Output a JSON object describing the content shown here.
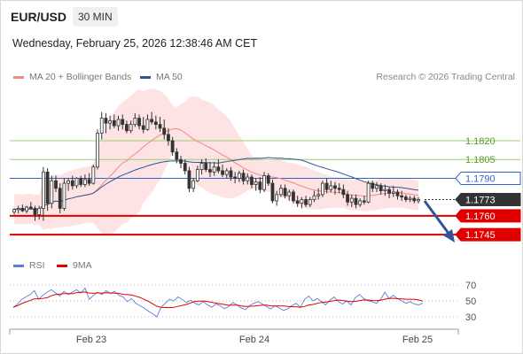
{
  "header": {
    "pair": "EUR/USD",
    "timeframe": "30 MIN",
    "datetime": "Wednesday, February 25, 2026 12:38:46 AM CET"
  },
  "legend": {
    "ma20": "MA 20 + Bollinger Bands",
    "ma50": "MA 50",
    "copyright": "Research © 2026 Trading Central"
  },
  "rsi_legend": {
    "rsi": "RSI",
    "ma9": "9MA"
  },
  "colors": {
    "ma20": "#f08a84",
    "ma50": "#2f5597",
    "bands": "#fde3e3",
    "resistance": "#9ccf6f",
    "pivot": "#2f67c8",
    "support": "#e00000",
    "current": "#333333",
    "up_candle": "#333333",
    "down_candle": "#333333",
    "rsi": "#5b7fd6",
    "rsi_ma": "#e00000",
    "arrow": "#2f5597"
  },
  "levels": [
    {
      "value": "1.1820",
      "type": "resistance"
    },
    {
      "value": "1.1805",
      "type": "resistance"
    },
    {
      "value": "1.1790",
      "type": "pivot"
    },
    {
      "value": "1.1773",
      "type": "current"
    },
    {
      "value": "1.1760",
      "type": "support"
    },
    {
      "value": "1.1745",
      "type": "support"
    }
  ],
  "rsi_axis": [
    "70",
    "50",
    "30"
  ],
  "x_axis": [
    "Feb 23",
    "Feb 24",
    "Feb 25"
  ],
  "chart_data": {
    "type": "candlestick",
    "price_range": [
      1.1738,
      1.1861
    ],
    "candles": [
      [
        1.1763,
        1.1766,
        1.1761,
        1.1765
      ],
      [
        1.1765,
        1.1768,
        1.1762,
        1.1766
      ],
      [
        1.1766,
        1.1769,
        1.1763,
        1.1764
      ],
      [
        1.1764,
        1.1768,
        1.1762,
        1.1767
      ],
      [
        1.1767,
        1.1771,
        1.1765,
        1.1766
      ],
      [
        1.1766,
        1.1768,
        1.1756,
        1.1761
      ],
      [
        1.1761,
        1.1768,
        1.1757,
        1.1766
      ],
      [
        1.1766,
        1.1799,
        1.1756,
        1.1795
      ],
      [
        1.1795,
        1.1798,
        1.1764,
        1.177
      ],
      [
        1.177,
        1.1792,
        1.1766,
        1.1788
      ],
      [
        1.1788,
        1.1792,
        1.1779,
        1.1782
      ],
      [
        1.1782,
        1.1786,
        1.1762,
        1.1766
      ],
      [
        1.1766,
        1.179,
        1.1764,
        1.1786
      ],
      [
        1.1786,
        1.179,
        1.178,
        1.1788
      ],
      [
        1.1788,
        1.1792,
        1.1781,
        1.1784
      ],
      [
        1.1784,
        1.1791,
        1.1782,
        1.179
      ],
      [
        1.179,
        1.1792,
        1.1783,
        1.1785
      ],
      [
        1.1785,
        1.1793,
        1.1783,
        1.1789
      ],
      [
        1.1789,
        1.1794,
        1.1784,
        1.1786
      ],
      [
        1.1786,
        1.1801,
        1.1785,
        1.1799
      ],
      [
        1.1799,
        1.1829,
        1.1797,
        1.1826
      ],
      [
        1.1826,
        1.1843,
        1.1821,
        1.1838
      ],
      [
        1.1838,
        1.1842,
        1.1826,
        1.1834
      ],
      [
        1.1834,
        1.184,
        1.1829,
        1.1836
      ],
      [
        1.1836,
        1.1841,
        1.183,
        1.1832
      ],
      [
        1.1832,
        1.184,
        1.1828,
        1.1837
      ],
      [
        1.1837,
        1.1841,
        1.1829,
        1.1833
      ],
      [
        1.1833,
        1.1836,
        1.1826,
        1.1828
      ],
      [
        1.1828,
        1.1836,
        1.1826,
        1.1833
      ],
      [
        1.1833,
        1.1842,
        1.1831,
        1.1838
      ],
      [
        1.1838,
        1.1841,
        1.1829,
        1.1832
      ],
      [
        1.1832,
        1.1839,
        1.1826,
        1.1829
      ],
      [
        1.1829,
        1.1841,
        1.1828,
        1.1837
      ],
      [
        1.1837,
        1.1843,
        1.1833,
        1.1835
      ],
      [
        1.1835,
        1.184,
        1.1829,
        1.1833
      ],
      [
        1.1833,
        1.1839,
        1.1827,
        1.183
      ],
      [
        1.183,
        1.1837,
        1.1821,
        1.1825
      ],
      [
        1.1825,
        1.183,
        1.1816,
        1.182
      ],
      [
        1.182,
        1.1823,
        1.1808,
        1.1811
      ],
      [
        1.1811,
        1.1814,
        1.1802,
        1.1805
      ],
      [
        1.1805,
        1.1808,
        1.1798,
        1.1802
      ],
      [
        1.1802,
        1.1805,
        1.1793,
        1.1796
      ],
      [
        1.1796,
        1.1799,
        1.1779,
        1.1782
      ],
      [
        1.1782,
        1.179,
        1.1779,
        1.1788
      ],
      [
        1.1788,
        1.18,
        1.1787,
        1.1797
      ],
      [
        1.1797,
        1.1805,
        1.1793,
        1.1802
      ],
      [
        1.1802,
        1.1806,
        1.1795,
        1.1797
      ],
      [
        1.1797,
        1.1803,
        1.1791,
        1.1795
      ],
      [
        1.1795,
        1.1803,
        1.1792,
        1.1799
      ],
      [
        1.1799,
        1.1805,
        1.1794,
        1.1796
      ],
      [
        1.1796,
        1.1801,
        1.1791,
        1.1793
      ],
      [
        1.1793,
        1.1798,
        1.179,
        1.1796
      ],
      [
        1.1796,
        1.1799,
        1.1788,
        1.1791
      ],
      [
        1.1791,
        1.1795,
        1.1786,
        1.179
      ],
      [
        1.179,
        1.1796,
        1.1787,
        1.1794
      ],
      [
        1.1794,
        1.1797,
        1.1785,
        1.1788
      ],
      [
        1.1788,
        1.1794,
        1.1785,
        1.1791
      ],
      [
        1.1791,
        1.1793,
        1.1782,
        1.1785
      ],
      [
        1.1785,
        1.179,
        1.178,
        1.1787
      ],
      [
        1.1787,
        1.1791,
        1.1778,
        1.1781
      ],
      [
        1.1781,
        1.1795,
        1.1779,
        1.1792
      ],
      [
        1.1792,
        1.1794,
        1.1784,
        1.1786
      ],
      [
        1.1786,
        1.1789,
        1.177,
        1.1772
      ],
      [
        1.1772,
        1.178,
        1.1768,
        1.1777
      ],
      [
        1.1777,
        1.1785,
        1.1775,
        1.1782
      ],
      [
        1.1782,
        1.1785,
        1.1774,
        1.1776
      ],
      [
        1.1776,
        1.1781,
        1.1772,
        1.1779
      ],
      [
        1.1779,
        1.1781,
        1.177,
        1.1772
      ],
      [
        1.1772,
        1.1776,
        1.1767,
        1.177
      ],
      [
        1.177,
        1.1775,
        1.1766,
        1.1773
      ],
      [
        1.1773,
        1.1776,
        1.1767,
        1.1769
      ],
      [
        1.1769,
        1.1775,
        1.1767,
        1.1773
      ],
      [
        1.1773,
        1.178,
        1.1771,
        1.1776
      ],
      [
        1.1776,
        1.1782,
        1.1773,
        1.1777
      ],
      [
        1.1777,
        1.1788,
        1.1775,
        1.1786
      ],
      [
        1.1786,
        1.179,
        1.1778,
        1.1781
      ],
      [
        1.1781,
        1.1788,
        1.1779,
        1.1784
      ],
      [
        1.1784,
        1.1787,
        1.1777,
        1.1782
      ],
      [
        1.1782,
        1.1786,
        1.1778,
        1.1781
      ],
      [
        1.1781,
        1.1785,
        1.1774,
        1.1777
      ],
      [
        1.1777,
        1.178,
        1.1768,
        1.1771
      ],
      [
        1.1771,
        1.1777,
        1.1767,
        1.1774
      ],
      [
        1.1774,
        1.1777,
        1.1766,
        1.1769
      ],
      [
        1.1769,
        1.1774,
        1.1767,
        1.1772
      ],
      [
        1.1772,
        1.1776,
        1.1769,
        1.1771
      ],
      [
        1.1771,
        1.1788,
        1.177,
        1.1786
      ],
      [
        1.1786,
        1.1788,
        1.1779,
        1.1782
      ],
      [
        1.1782,
        1.1787,
        1.1779,
        1.1784
      ],
      [
        1.1784,
        1.1786,
        1.1777,
        1.178
      ],
      [
        1.178,
        1.1785,
        1.1776,
        1.1781
      ],
      [
        1.1781,
        1.1783,
        1.1774,
        1.1778
      ],
      [
        1.1778,
        1.1784,
        1.1775,
        1.1779
      ],
      [
        1.1779,
        1.1781,
        1.1773,
        1.1776
      ],
      [
        1.1776,
        1.178,
        1.1772,
        1.1775
      ],
      [
        1.1775,
        1.1777,
        1.1771,
        1.1773
      ],
      [
        1.1773,
        1.1776,
        1.1771,
        1.1774
      ],
      [
        1.1774,
        1.1776,
        1.177,
        1.1772
      ],
      [
        1.1772,
        1.1775,
        1.177,
        1.1773
      ]
    ],
    "rsi_range": [
      20,
      80
    ],
    "rsi": [
      42,
      46,
      52,
      55,
      58,
      63,
      52,
      57,
      61,
      64,
      60,
      56,
      62,
      58,
      61,
      64,
      60,
      66,
      52,
      57,
      61,
      58,
      63,
      59,
      62,
      57,
      55,
      49,
      53,
      47,
      44,
      41,
      37,
      34,
      30,
      42,
      47,
      52,
      50,
      55,
      52,
      48,
      51,
      47,
      45,
      49,
      45,
      42,
      46,
      44,
      40,
      43,
      48,
      45,
      41,
      39,
      44,
      47,
      49,
      46,
      43,
      40,
      44,
      41,
      38,
      40,
      44,
      47,
      42,
      52,
      56,
      50,
      53,
      49,
      45,
      51,
      55,
      49,
      46,
      50,
      45,
      54,
      58,
      53,
      50,
      49,
      47,
      52,
      61,
      53,
      57,
      53,
      50,
      47,
      49,
      46,
      45,
      47
    ]
  }
}
